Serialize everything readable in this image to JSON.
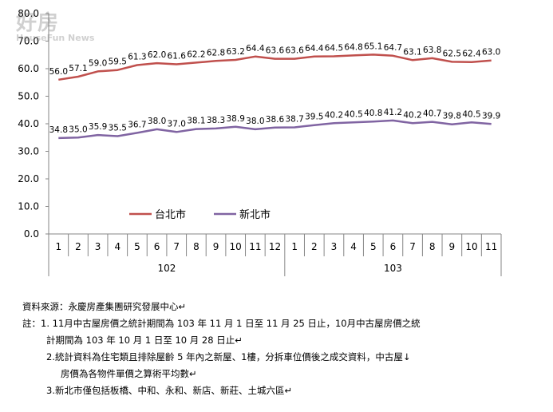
{
  "watermark": {
    "main": "好房",
    "sub": "HouseFun News"
  },
  "chart_data": {
    "type": "line",
    "ylim": [
      0,
      80
    ],
    "yticks": [
      "0.0",
      "10.0",
      "20.0",
      "30.0",
      "40.0",
      "50.0",
      "60.0",
      "70.0",
      "80.0"
    ],
    "categories": [
      "1",
      "2",
      "3",
      "4",
      "5",
      "6",
      "7",
      "8",
      "9",
      "10",
      "11",
      "12",
      "1",
      "2",
      "3",
      "4",
      "5",
      "6",
      "7",
      "8",
      "9",
      "10",
      "11"
    ],
    "year_groups": [
      {
        "label": "102",
        "count": 12
      },
      {
        "label": "103",
        "count": 11
      }
    ],
    "series": [
      {
        "name": "台北市",
        "color": "#c0504d",
        "values": [
          56.0,
          57.1,
          59.0,
          59.5,
          61.3,
          62.0,
          61.6,
          62.2,
          62.8,
          63.2,
          64.4,
          63.6,
          63.6,
          64.4,
          64.5,
          64.8,
          65.1,
          64.7,
          63.1,
          63.8,
          62.5,
          62.4,
          63.0
        ]
      },
      {
        "name": "新北市",
        "color": "#8064a2",
        "values": [
          34.8,
          35.0,
          35.9,
          35.5,
          36.7,
          38.0,
          37.0,
          38.1,
          38.3,
          38.9,
          38.0,
          38.6,
          38.7,
          39.5,
          40.2,
          40.5,
          40.8,
          41.2,
          40.2,
          40.7,
          39.8,
          40.5,
          39.9
        ]
      }
    ],
    "grid": false,
    "legend": "inside-lower-center"
  },
  "notes": {
    "source": "資料來源：永慶房產集團研究發展中心↵",
    "note1_a": "註：1. 11月中古屋房價之統計期間為 103 年 11 月 1 日至 11 月 25 日止，10月中古屋房價之統",
    "note1_b": "計期間為 103 年 10 月 1 日至 10 月 28 日止↵",
    "note2_a": "2.統計資料為住宅類且排除屋齡 5 年內之新屋、1樓，分拆車位價後之成交資料，中古屋↓",
    "note2_b": "房價為各物件單價之算術平均數↵",
    "note3": "3.新北市僅包括板橋、中和、永和、新店、新莊、土城六區↵"
  }
}
